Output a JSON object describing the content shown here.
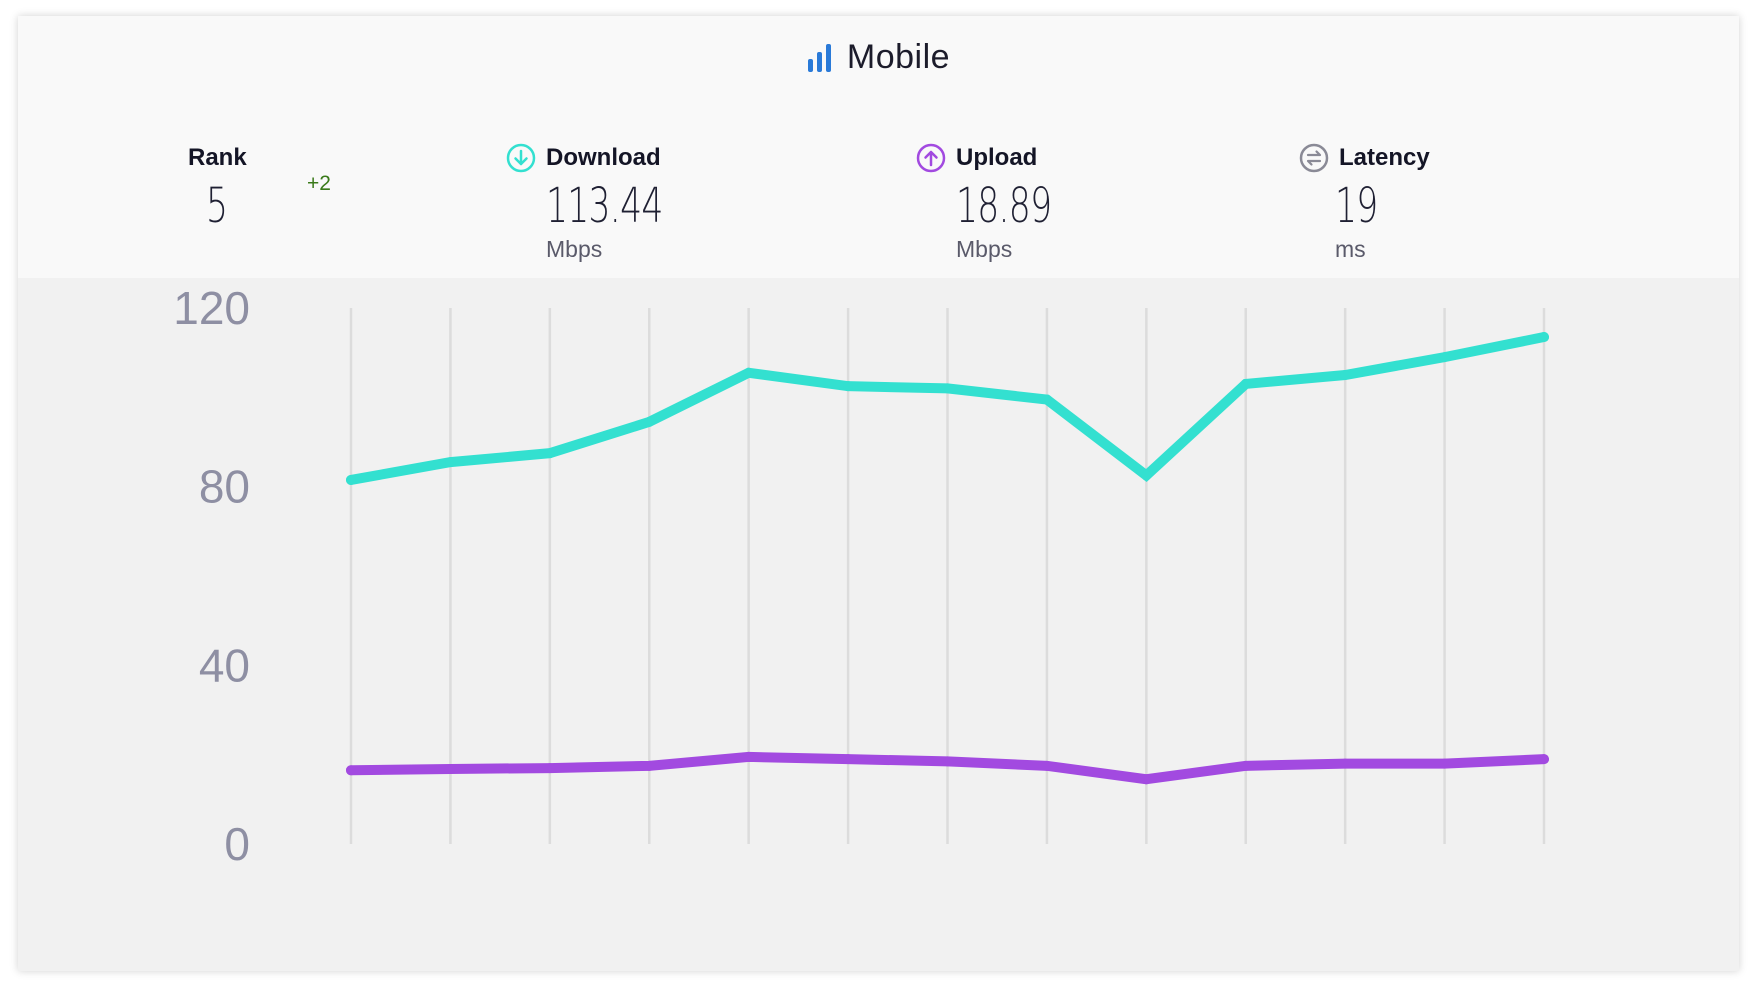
{
  "header": {
    "title": "Mobile",
    "title_icon": "signal-bars-icon"
  },
  "stats": {
    "rank": {
      "label": "Rank",
      "value": "5",
      "change": "+2"
    },
    "download": {
      "label": "Download",
      "value": "113.44",
      "unit": "Mbps",
      "icon": "download-arrow-icon"
    },
    "upload": {
      "label": "Upload",
      "value": "18.89",
      "unit": "Mbps",
      "icon": "upload-arrow-icon"
    },
    "latency": {
      "label": "Latency",
      "value": "19",
      "unit": "ms",
      "icon": "latency-icon"
    }
  },
  "colors": {
    "download": "#33e0d0",
    "upload": "#a24ae0",
    "title_icon": "#2a7ad8",
    "rank_change": "#3a7a1a",
    "latency_icon": "#8a8a96",
    "axis_text": "#8e8fa3",
    "grid": "#dcdcdc"
  },
  "chart_data": {
    "type": "line",
    "ylim": [
      0,
      120
    ],
    "yticks": [
      "0",
      "40",
      "80",
      "120"
    ],
    "x": [
      1,
      2,
      3,
      4,
      5,
      6,
      7,
      8,
      9,
      10,
      11,
      12,
      13
    ],
    "grid": "vertical lines at each x point",
    "series": [
      {
        "name": "Download",
        "values": [
          81.5,
          85.5,
          87.5,
          94.5,
          105.5,
          102.5,
          102,
          99.5,
          82.5,
          103,
          105,
          109,
          113.5
        ]
      },
      {
        "name": "Upload",
        "values": [
          16.5,
          16.8,
          17,
          17.5,
          19.5,
          19,
          18.5,
          17.5,
          14.5,
          17.5,
          18,
          18,
          19
        ]
      }
    ]
  }
}
